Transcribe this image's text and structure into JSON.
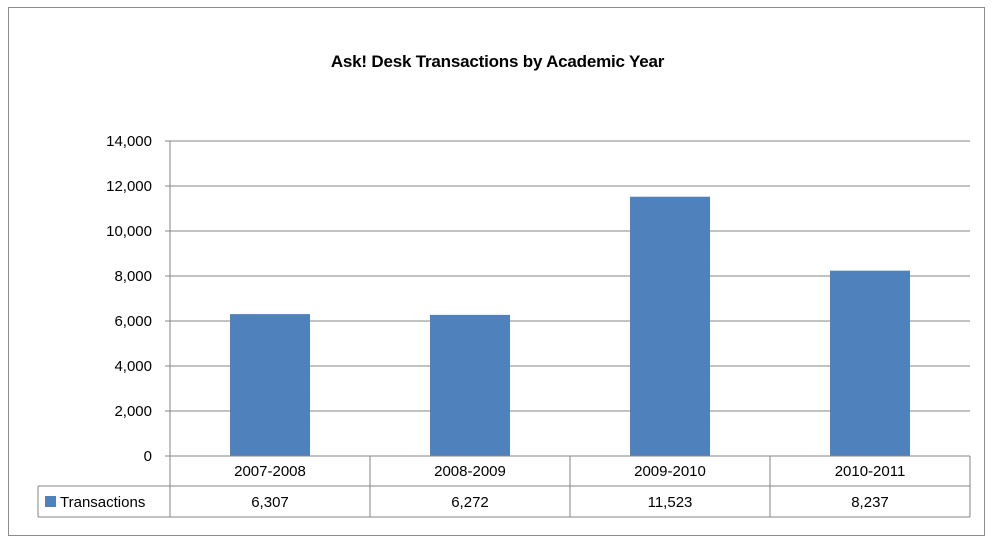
{
  "chart_data": {
    "type": "bar",
    "title": "Ask! Desk Transactions by Academic Year",
    "xlabel": "",
    "ylabel": "",
    "categories": [
      "2007-2008",
      "2008-2009",
      "2009-2010",
      "2010-2011"
    ],
    "series": [
      {
        "name": "Transactions",
        "color": "#4f81bd",
        "values": [
          6307,
          6272,
          11523,
          8237
        ]
      }
    ],
    "data_table_values": [
      "6,307",
      "6,272",
      "11,523",
      "8,237"
    ],
    "ylim": [
      0,
      14000
    ],
    "yticks": [
      "0",
      "2,000",
      "4,000",
      "6,000",
      "8,000",
      "10,000",
      "12,000",
      "14,000"
    ],
    "grid": true,
    "legend": "data-table"
  }
}
